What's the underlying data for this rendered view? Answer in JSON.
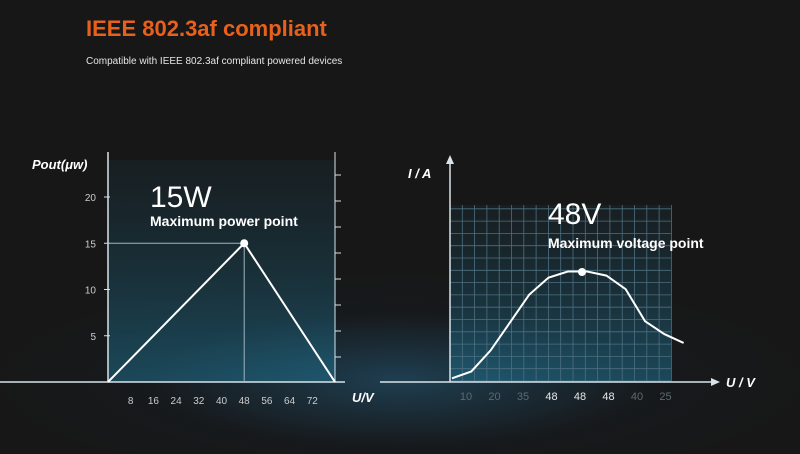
{
  "header": {
    "title": "IEEE 802.3af compliant",
    "subtitle": "Compatible with IEEE 802.3af compliant powered devices"
  },
  "colors": {
    "accent": "#e8611c",
    "axis": "#ffffff",
    "grid": "#4d6f80"
  },
  "chart_data": [
    {
      "type": "line",
      "title": "",
      "ylabel": "Pout(μw)",
      "xlabel": "U/V",
      "x_ticks": [
        "8",
        "16",
        "24",
        "32",
        "40",
        "48",
        "56",
        "64",
        "72"
      ],
      "y_ticks": [
        "5",
        "10",
        "15",
        "20"
      ],
      "xlim": [
        0,
        80
      ],
      "ylim": [
        0,
        24
      ],
      "series": [
        {
          "x": [
            0,
            48,
            80
          ],
          "y": [
            0,
            15,
            0
          ]
        }
      ],
      "annotation": {
        "x": 48,
        "y": 15,
        "value": "15W",
        "label": "Maximum power point"
      }
    },
    {
      "type": "line",
      "title": "",
      "ylabel": "I / A",
      "xlabel": "U / V",
      "x_ticks": [
        "10",
        "20",
        "35",
        "48",
        "48",
        "48",
        "40",
        "25"
      ],
      "grid": true,
      "series": [
        {
          "y": [
            0.4,
            1.4,
            4.5,
            8.6,
            12.7,
            15.2,
            16.1,
            16.1,
            15.5,
            13.5,
            8.8,
            6.9,
            5.6
          ]
        }
      ],
      "annotation": {
        "value": "48V",
        "label": "Maximum voltage point"
      }
    }
  ]
}
